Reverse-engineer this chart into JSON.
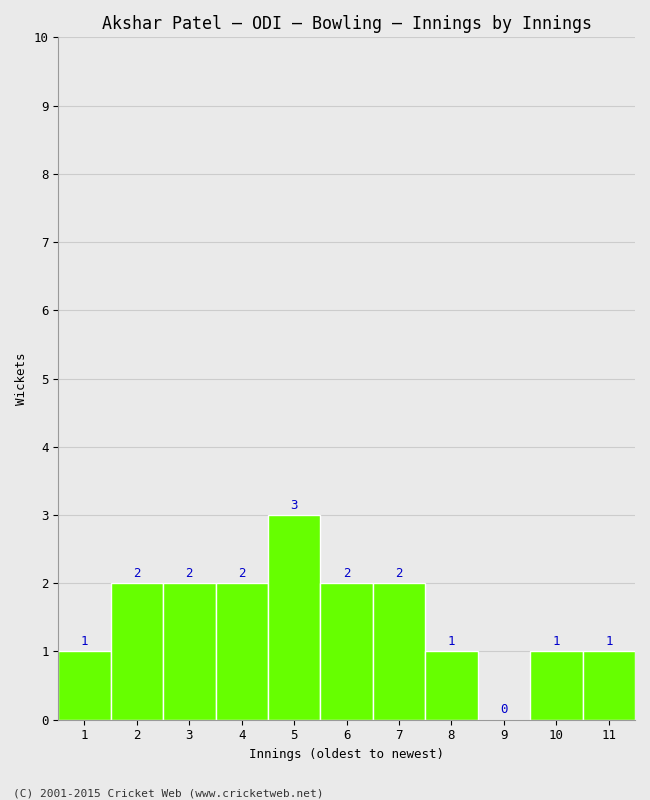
{
  "title": "Akshar Patel – ODI – Bowling – Innings by Innings",
  "xlabel": "Innings (oldest to newest)",
  "ylabel": "Wickets",
  "categories": [
    "1",
    "2",
    "3",
    "4",
    "5",
    "6",
    "7",
    "8",
    "9",
    "10",
    "11"
  ],
  "values": [
    1,
    2,
    2,
    2,
    3,
    2,
    2,
    1,
    0,
    1,
    1
  ],
  "bar_color": "#66ff00",
  "bar_edge_color": "#ffffff",
  "label_color": "#0000cc",
  "ylim": [
    0,
    10
  ],
  "yticks": [
    0,
    1,
    2,
    3,
    4,
    5,
    6,
    7,
    8,
    9,
    10
  ],
  "background_color": "#eaeaea",
  "plot_background": "#eaeaea",
  "grid_color": "#cccccc",
  "title_fontsize": 12,
  "axis_fontsize": 9,
  "label_fontsize": 9,
  "footer": "(C) 2001-2015 Cricket Web (www.cricketweb.net)",
  "footer_fontsize": 8
}
